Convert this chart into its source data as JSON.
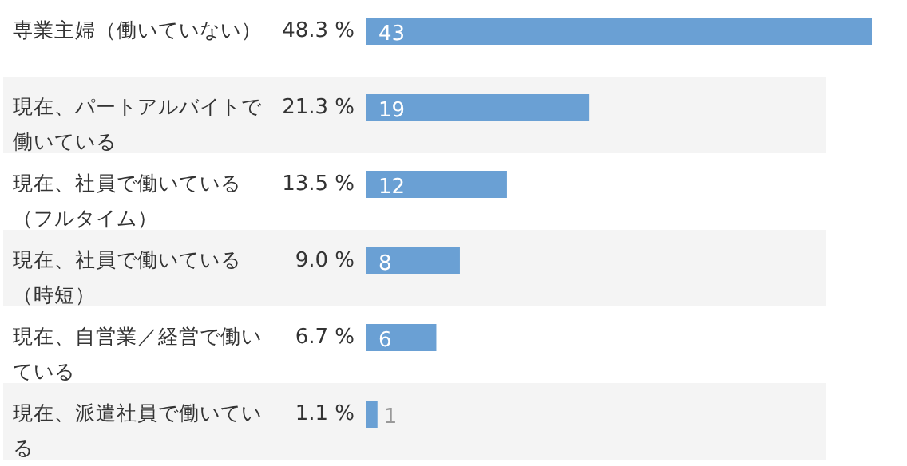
{
  "chart_data": {
    "type": "bar",
    "orientation": "horizontal",
    "data_labels": true,
    "color": "#6aa0d4",
    "categories": [
      "専業主婦（働いていない）",
      "現在、パートアルバイトで働いている",
      "現在、社員で働いている（フルタイム）",
      "現在、社員で働いている（時短）",
      "現在、自営業／経営で働いている",
      "現在、派遣社員で働いている"
    ],
    "values": [
      43,
      19,
      12,
      8,
      6,
      1
    ],
    "annotations": [
      "48.3 %",
      "21.3 %",
      "13.5 %",
      "9.0 %",
      "6.7 %",
      "1.1 %"
    ]
  }
}
